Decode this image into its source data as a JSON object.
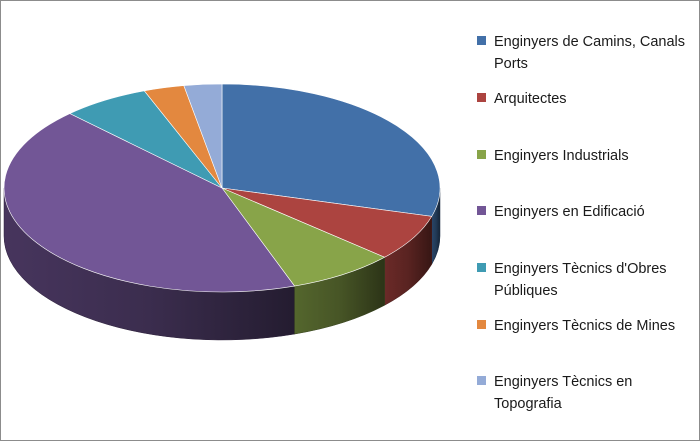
{
  "chart_data": {
    "type": "pie",
    "title": "",
    "three_d": true,
    "legend_position": "right",
    "categories": [
      "Enginyers de Camins, Canals i Ports",
      "Arquitectes",
      "Enginyers Industrials",
      "Enginyers en Edificació",
      "Enginyers Tècnics d'Obres Públiques",
      "Enginyers Tècnics de Mines",
      "Enginyers Tècnics en Topografia"
    ],
    "values": [
      29.4,
      7.2,
      8.0,
      43.1,
      6.5,
      3.0,
      2.8
    ],
    "colors": [
      "#4270a8",
      "#ac4440",
      "#88a449",
      "#725696",
      "#3f9bb3",
      "#e3883f",
      "#94abd7"
    ]
  },
  "legend": {
    "items": [
      {
        "label": "Enginyers de Camins, Canals Ports"
      },
      {
        "label": "Arquitectes"
      },
      {
        "label": "Enginyers Industrials"
      },
      {
        "label": "Enginyers en Edificació"
      },
      {
        "label": "Enginyers Tècnics d'Obres Públiques"
      },
      {
        "label": "Enginyers Tècnics de Mines"
      },
      {
        "label": "Enginyers Tècnics en Topografia"
      }
    ]
  }
}
